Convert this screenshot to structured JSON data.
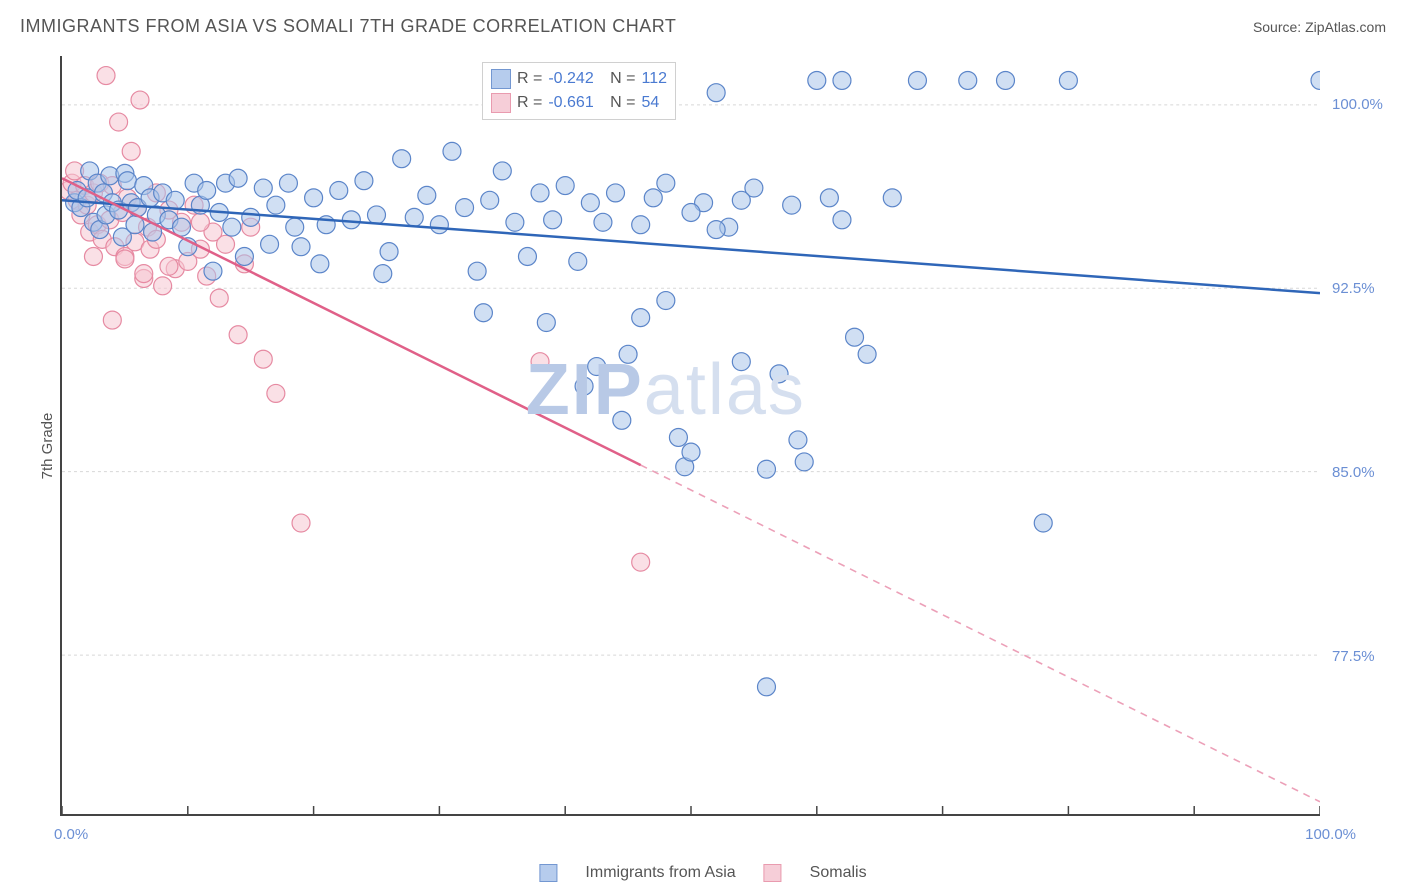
{
  "header": {
    "title": "IMMIGRANTS FROM ASIA VS SOMALI 7TH GRADE CORRELATION CHART",
    "source_prefix": "Source: ",
    "source_name": "ZipAtlas.com"
  },
  "watermark": {
    "part1": "ZIP",
    "part2": "atlas"
  },
  "chart": {
    "type": "scatter",
    "ylabel": "7th Grade",
    "xlim": [
      0,
      100
    ],
    "ylim": [
      71,
      102
    ],
    "xticks": [
      0,
      10,
      20,
      30,
      40,
      50,
      60,
      70,
      80,
      90,
      100
    ],
    "xtick_labels_visible": {
      "0": "0.0%",
      "100": "100.0%"
    },
    "yticks": [
      77.5,
      85.0,
      92.5,
      100.0
    ],
    "ytick_labels": [
      "77.5%",
      "85.0%",
      "92.5%",
      "100.0%"
    ],
    "grid_color": "#d8d8d8",
    "axis_color": "#444444",
    "background_color": "#ffffff",
    "marker_radius": 9,
    "marker_stroke_width": 1.2,
    "line_width": 2.5,
    "series": [
      {
        "name": "Immigrants from Asia",
        "fill": "#aac4ea",
        "stroke": "#5b85c9",
        "line_color": "#2f66b8",
        "R_label": "R = ",
        "R": "-0.242",
        "N_label": "N = ",
        "N": "112",
        "trend": {
          "x1": 0,
          "y1": 96.1,
          "x2": 100,
          "y2": 92.3,
          "solid_until_x": 100
        },
        "points": [
          [
            1,
            96
          ],
          [
            1.2,
            96.5
          ],
          [
            1.5,
            95.8
          ],
          [
            2,
            96.2
          ],
          [
            2.2,
            97.3
          ],
          [
            2.5,
            95.2
          ],
          [
            2.8,
            96.8
          ],
          [
            3,
            94.9
          ],
          [
            3.3,
            96.4
          ],
          [
            3.5,
            95.5
          ],
          [
            3.8,
            97.1
          ],
          [
            4,
            96
          ],
          [
            4.5,
            95.7
          ],
          [
            4.8,
            94.6
          ],
          [
            5,
            97.2
          ],
          [
            5.2,
            96.9
          ],
          [
            5.5,
            96
          ],
          [
            5.8,
            95.1
          ],
          [
            6,
            95.8
          ],
          [
            6.5,
            96.7
          ],
          [
            7,
            96.2
          ],
          [
            7.2,
            94.8
          ],
          [
            7.5,
            95.5
          ],
          [
            8,
            96.4
          ],
          [
            8.5,
            95.3
          ],
          [
            9,
            96.1
          ],
          [
            9.5,
            95
          ],
          [
            10,
            94.2
          ],
          [
            10.5,
            96.8
          ],
          [
            11,
            95.9
          ],
          [
            11.5,
            96.5
          ],
          [
            12,
            93.2
          ],
          [
            12.5,
            95.6
          ],
          [
            13,
            96.8
          ],
          [
            13.5,
            95
          ],
          [
            14,
            97
          ],
          [
            14.5,
            93.8
          ],
          [
            15,
            95.4
          ],
          [
            16,
            96.6
          ],
          [
            16.5,
            94.3
          ],
          [
            17,
            95.9
          ],
          [
            18,
            96.8
          ],
          [
            18.5,
            95
          ],
          [
            19,
            94.2
          ],
          [
            20,
            96.2
          ],
          [
            20.5,
            93.5
          ],
          [
            21,
            95.1
          ],
          [
            22,
            96.5
          ],
          [
            23,
            95.3
          ],
          [
            24,
            96.9
          ],
          [
            25,
            95.5
          ],
          [
            25.5,
            93.1
          ],
          [
            26,
            94
          ],
          [
            27,
            97.8
          ],
          [
            28,
            95.4
          ],
          [
            29,
            96.3
          ],
          [
            30,
            95.1
          ],
          [
            31,
            98.1
          ],
          [
            32,
            95.8
          ],
          [
            33,
            93.2
          ],
          [
            33.5,
            91.5
          ],
          [
            34,
            96.1
          ],
          [
            35,
            97.3
          ],
          [
            36,
            95.2
          ],
          [
            37,
            93.8
          ],
          [
            38,
            96.4
          ],
          [
            38.5,
            91.1
          ],
          [
            39,
            95.3
          ],
          [
            40,
            96.7
          ],
          [
            41,
            93.6
          ],
          [
            41.5,
            88.5
          ],
          [
            42,
            96
          ],
          [
            42.5,
            89.3
          ],
          [
            43,
            95.2
          ],
          [
            44,
            96.4
          ],
          [
            44.5,
            87.1
          ],
          [
            45,
            89.8
          ],
          [
            46,
            95.1
          ],
          [
            47,
            96.2
          ],
          [
            48,
            92
          ],
          [
            49,
            86.4
          ],
          [
            49.5,
            85.2
          ],
          [
            50,
            85.8
          ],
          [
            51,
            96
          ],
          [
            52,
            100.5
          ],
          [
            53,
            95
          ],
          [
            54,
            89.5
          ],
          [
            55,
            96.6
          ],
          [
            56,
            85.1
          ],
          [
            57,
            89
          ],
          [
            58,
            95.9
          ],
          [
            58.5,
            86.3
          ],
          [
            59,
            85.4
          ],
          [
            60,
            101
          ],
          [
            61,
            96.2
          ],
          [
            62,
            101
          ],
          [
            63,
            90.5
          ],
          [
            68,
            101
          ],
          [
            72,
            101
          ],
          [
            75,
            101
          ],
          [
            78,
            82.9
          ],
          [
            80,
            101
          ],
          [
            56,
            76.2
          ],
          [
            100,
            101
          ],
          [
            46,
            91.3
          ],
          [
            48,
            96.8
          ],
          [
            50,
            95.6
          ],
          [
            52,
            94.9
          ],
          [
            54,
            96.1
          ],
          [
            62,
            95.3
          ],
          [
            64,
            89.8
          ],
          [
            66,
            96.2
          ]
        ]
      },
      {
        "name": "Somalis",
        "fill": "#f5c6d2",
        "stroke": "#e68aa2",
        "line_color": "#e06088",
        "R_label": "R = ",
        "R": "-0.661",
        "N_label": "N = ",
        "N": "54",
        "trend": {
          "x1": 0,
          "y1": 97.0,
          "x2": 100,
          "y2": 71.5,
          "solid_until_x": 46
        },
        "points": [
          [
            0.5,
            96.5
          ],
          [
            0.8,
            96.8
          ],
          [
            1,
            97.3
          ],
          [
            1.2,
            96.1
          ],
          [
            1.5,
            95.5
          ],
          [
            1.8,
            96.7
          ],
          [
            2,
            95.9
          ],
          [
            2.2,
            94.8
          ],
          [
            2.5,
            96.4
          ],
          [
            2.8,
            95.1
          ],
          [
            3,
            96.8
          ],
          [
            3.2,
            94.5
          ],
          [
            3.5,
            101.2
          ],
          [
            3.8,
            95.3
          ],
          [
            4,
            96.7
          ],
          [
            4.2,
            94.2
          ],
          [
            4.5,
            99.3
          ],
          [
            4.8,
            95.6
          ],
          [
            5,
            93.8
          ],
          [
            5.2,
            96.2
          ],
          [
            5.5,
            98.1
          ],
          [
            5.8,
            94.4
          ],
          [
            6,
            95.8
          ],
          [
            6.2,
            100.2
          ],
          [
            6.5,
            92.9
          ],
          [
            6.8,
            95
          ],
          [
            7,
            94.1
          ],
          [
            7.5,
            96.4
          ],
          [
            8,
            92.6
          ],
          [
            8.5,
            95.7
          ],
          [
            9,
            93.3
          ],
          [
            9.5,
            95.2
          ],
          [
            10,
            93.6
          ],
          [
            10.5,
            95.9
          ],
          [
            11,
            94.1
          ],
          [
            11.5,
            93
          ],
          [
            12,
            94.8
          ],
          [
            12.5,
            92.1
          ],
          [
            13,
            94.3
          ],
          [
            14,
            90.6
          ],
          [
            14.5,
            93.5
          ],
          [
            15,
            95
          ],
          [
            16,
            89.6
          ],
          [
            17,
            88.2
          ],
          [
            4,
            91.2
          ],
          [
            5,
            93.7
          ],
          [
            6.5,
            93.1
          ],
          [
            8.5,
            93.4
          ],
          [
            11,
            95.2
          ],
          [
            19,
            82.9
          ],
          [
            38,
            89.5
          ],
          [
            46,
            81.3
          ],
          [
            2.5,
            93.8
          ],
          [
            7.5,
            94.5
          ]
        ]
      }
    ],
    "legend": {
      "series1": "Immigrants from Asia",
      "series2": "Somalis"
    }
  }
}
